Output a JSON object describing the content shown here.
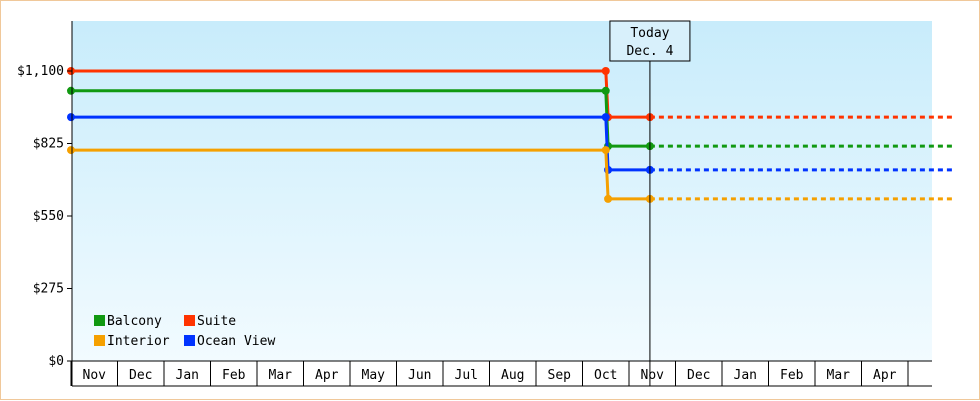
{
  "chart_data": {
    "type": "line",
    "title": "",
    "xlabel": "",
    "ylabel": "",
    "ylim": [
      0,
      1250
    ],
    "yticks": [
      {
        "value": 0,
        "label": "$0"
      },
      {
        "value": 275,
        "label": "$275"
      },
      {
        "value": 550,
        "label": "$550"
      },
      {
        "value": 825,
        "label": "$825"
      },
      {
        "value": 1100,
        "label": "$1,100"
      }
    ],
    "x_categories": [
      "Nov",
      "Dec",
      "Jan",
      "Feb",
      "Mar",
      "Apr",
      "May",
      "Jun",
      "Jul",
      "Aug",
      "Sep",
      "Oct",
      "Nov",
      "Dec",
      "Jan",
      "Feb",
      "Mar",
      "Apr"
    ],
    "today": {
      "line1": "Today",
      "line2": "Dec. 4",
      "x": 12.45
    },
    "series": [
      {
        "name": "Suite",
        "color": "#ff3300",
        "points": [
          [
            0,
            1100
          ],
          [
            11.5,
            1100
          ],
          [
            11.55,
            925
          ],
          [
            12.45,
            925
          ]
        ],
        "projection": [
          [
            12.45,
            925
          ],
          [
            18.95,
            925
          ]
        ]
      },
      {
        "name": "Balcony",
        "color": "#119911",
        "points": [
          [
            0,
            1025
          ],
          [
            11.5,
            1025
          ],
          [
            11.55,
            815
          ],
          [
            12.45,
            815
          ]
        ],
        "projection": [
          [
            12.45,
            815
          ],
          [
            18.95,
            815
          ]
        ]
      },
      {
        "name": "Ocean View",
        "color": "#0033ff",
        "points": [
          [
            0,
            925
          ],
          [
            11.5,
            925
          ],
          [
            11.55,
            725
          ],
          [
            12.45,
            725
          ]
        ],
        "projection": [
          [
            12.45,
            725
          ],
          [
            18.95,
            725
          ]
        ]
      },
      {
        "name": "Interior",
        "color": "#f5a000",
        "points": [
          [
            0,
            800
          ],
          [
            11.5,
            800
          ],
          [
            11.55,
            615
          ],
          [
            12.45,
            615
          ]
        ],
        "projection": [
          [
            12.45,
            615
          ],
          [
            18.95,
            615
          ]
        ]
      }
    ],
    "legend": [
      {
        "name": "Balcony",
        "color": "#119911"
      },
      {
        "name": "Suite",
        "color": "#ff3300"
      },
      {
        "name": "Interior",
        "color": "#f5a000"
      },
      {
        "name": "Ocean View",
        "color": "#0033ff"
      }
    ],
    "legend_placement": "bottom-left",
    "grid": false
  }
}
